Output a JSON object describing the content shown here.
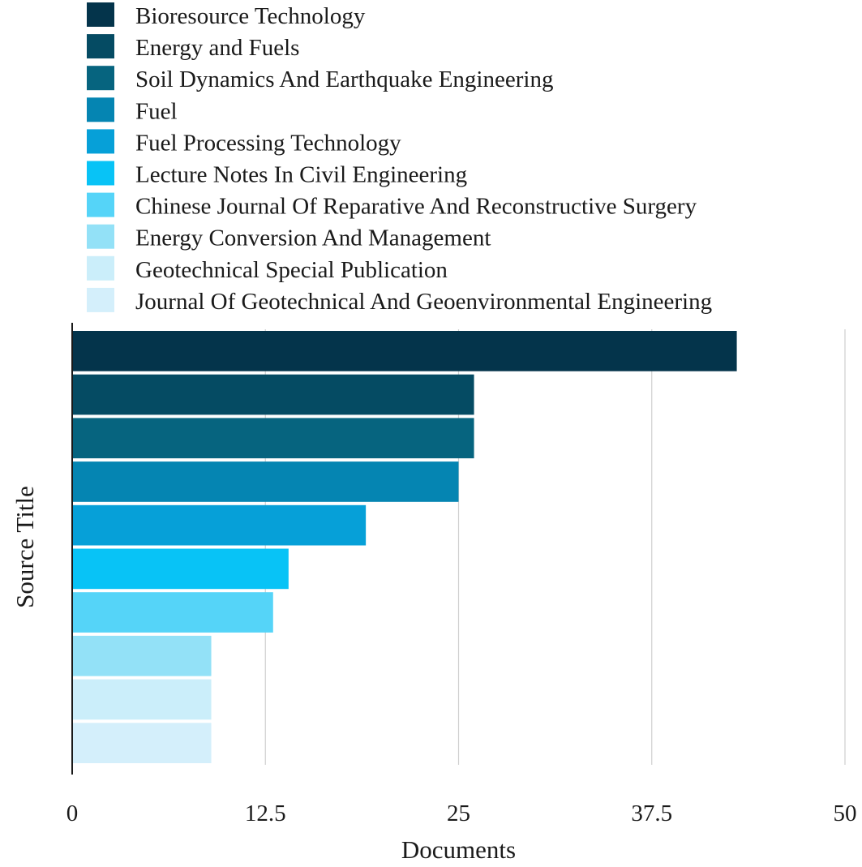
{
  "chart_data": {
    "type": "bar",
    "orientation": "horizontal",
    "categories": [
      "Bioresource Technology",
      "Energy and Fuels",
      "Soil Dynamics And Earthquake Engineering",
      "Fuel",
      "Fuel Processing Technology",
      "Lecture Notes In Civil Engineering",
      "Chinese Journal Of Reparative And Reconstructive Surgery",
      "Energy Conversion And Management",
      "Geotechnical Special Publication",
      "Journal Of Geotechnical And Geoenvironmental Engineering"
    ],
    "values": [
      43,
      26,
      26,
      25,
      19,
      14,
      13,
      9,
      9,
      9
    ],
    "colors": [
      "#04344B",
      "#054B63",
      "#06647F",
      "#0585B2",
      "#06A0D8",
      "#08C3F6",
      "#55D4F8",
      "#93E1F7",
      "#CBEEFA",
      "#D4EFFB"
    ],
    "xlabel": "Documents",
    "ylabel": "Source Title",
    "xlim": [
      0,
      50
    ],
    "xticks": [
      "0",
      "12.5",
      "25",
      "37.5",
      "50"
    ],
    "grid": true,
    "legend_position": "top"
  }
}
